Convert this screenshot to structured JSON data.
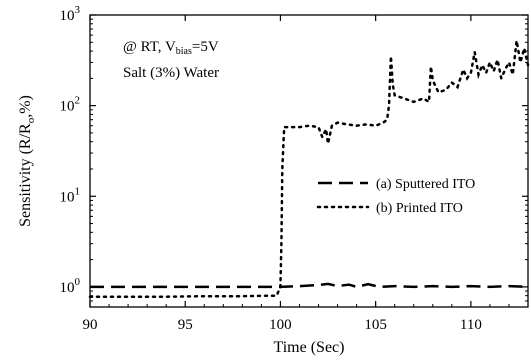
{
  "chart_data": {
    "type": "line",
    "ylabel": {
      "main": "Sensitivity (R/R",
      "sub": "o",
      "tail": ",%)"
    },
    "xlabel": "Time (Sec)",
    "xlim": [
      90,
      113
    ],
    "ylim": [
      0.6,
      1000
    ],
    "y_scale": "log",
    "x_ticks": [
      {
        "value": 90,
        "label": "90"
      },
      {
        "value": 95,
        "label": "95"
      },
      {
        "value": 100,
        "label": "100"
      },
      {
        "value": 105,
        "label": "105"
      },
      {
        "value": 110,
        "label": "110"
      }
    ],
    "y_ticks": [
      {
        "value": 1,
        "base": "10",
        "exp": "0"
      },
      {
        "value": 10,
        "base": "10",
        "exp": "1"
      },
      {
        "value": 100,
        "base": "10",
        "exp": "2"
      },
      {
        "value": 1000,
        "base": "10",
        "exp": "3"
      }
    ],
    "annotations": {
      "condition_prefix": "@ RT, V",
      "condition_sub": "bias",
      "condition_suffix": "=5V",
      "medium": "Salt (3%) Water"
    },
    "legend_position": "center-right",
    "series": [
      {
        "name": "(a) Sputtered ITO",
        "style": "dashed",
        "color": "#000000",
        "points": [
          [
            90,
            1.0
          ],
          [
            92,
            1.0
          ],
          [
            94,
            1.0
          ],
          [
            96,
            1.0
          ],
          [
            98,
            1.0
          ],
          [
            100,
            1.0
          ],
          [
            101,
            1.02
          ],
          [
            102,
            1.05
          ],
          [
            102.5,
            1.08
          ],
          [
            103,
            1.02
          ],
          [
            103.6,
            1.06
          ],
          [
            104,
            1.0
          ],
          [
            104.6,
            1.07
          ],
          [
            105.2,
            1.0
          ],
          [
            106,
            1.02
          ],
          [
            107,
            1.0
          ],
          [
            108,
            1.02
          ],
          [
            109,
            1.0
          ],
          [
            110,
            1.02
          ],
          [
            111,
            1.0
          ],
          [
            112,
            1.02
          ],
          [
            113,
            1.0
          ]
        ]
      },
      {
        "name": "(b) Printed ITO",
        "style": "dotted",
        "color": "#000000",
        "points": [
          [
            90,
            0.78
          ],
          [
            91,
            0.78
          ],
          [
            92,
            0.78
          ],
          [
            94,
            0.78
          ],
          [
            96,
            0.79
          ],
          [
            98,
            0.79
          ],
          [
            99.5,
            0.8
          ],
          [
            99.8,
            0.8
          ],
          [
            100.0,
            1.0
          ],
          [
            100.05,
            3
          ],
          [
            100.1,
            20
          ],
          [
            100.2,
            58
          ],
          [
            101,
            58
          ],
          [
            101.5,
            60
          ],
          [
            102,
            58
          ],
          [
            102.2,
            45
          ],
          [
            102.4,
            55
          ],
          [
            102.5,
            38
          ],
          [
            102.7,
            60
          ],
          [
            103,
            65
          ],
          [
            103.5,
            62
          ],
          [
            104,
            60
          ],
          [
            104.5,
            62
          ],
          [
            105,
            60
          ],
          [
            105.4,
            65
          ],
          [
            105.6,
            70
          ],
          [
            105.7,
            100
          ],
          [
            105.8,
            350
          ],
          [
            105.9,
            170
          ],
          [
            106,
            130
          ],
          [
            106.5,
            120
          ],
          [
            107,
            110
          ],
          [
            107.5,
            120
          ],
          [
            107.8,
            110
          ],
          [
            107.9,
            270
          ],
          [
            108,
            190
          ],
          [
            108.3,
            140
          ],
          [
            108.7,
            150
          ],
          [
            109,
            180
          ],
          [
            109.3,
            160
          ],
          [
            109.6,
            250
          ],
          [
            109.8,
            200
          ],
          [
            110,
            230
          ],
          [
            110.2,
            390
          ],
          [
            110.4,
            220
          ],
          [
            110.6,
            280
          ],
          [
            110.8,
            230
          ],
          [
            111,
            300
          ],
          [
            111.2,
            240
          ],
          [
            111.4,
            320
          ],
          [
            111.6,
            200
          ],
          [
            111.8,
            250
          ],
          [
            112,
            300
          ],
          [
            112.2,
            220
          ],
          [
            112.4,
            520
          ],
          [
            112.6,
            300
          ],
          [
            112.8,
            430
          ],
          [
            113,
            280
          ]
        ]
      }
    ]
  }
}
